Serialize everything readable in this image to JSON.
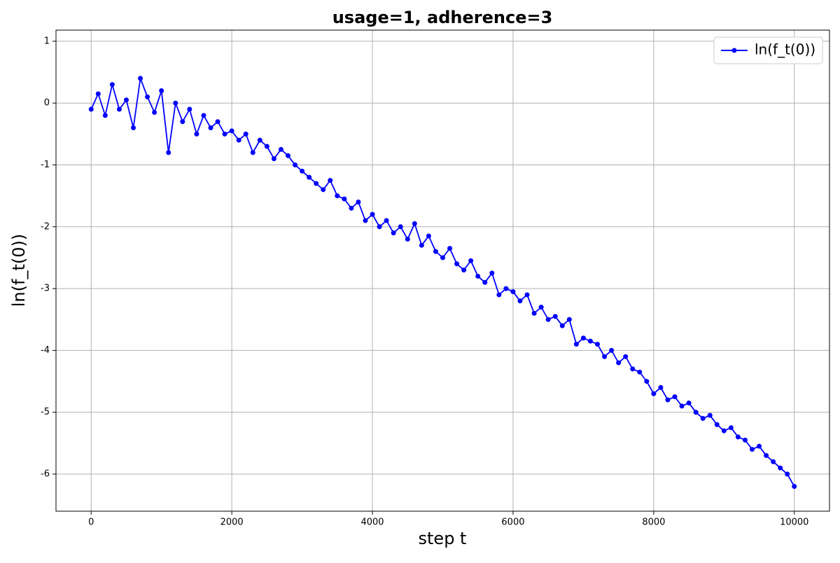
{
  "chart_data": {
    "type": "line",
    "title": "usage=1, adherence=3",
    "x_label": "step t",
    "y_label": "ln(f_t(0))",
    "x": [
      0,
      100,
      200,
      300,
      400,
      500,
      600,
      700,
      800,
      900,
      1000,
      1100,
      1200,
      1300,
      1400,
      1500,
      1600,
      1700,
      1800,
      1900,
      2000,
      2100,
      2200,
      2300,
      2400,
      2500,
      2600,
      2700,
      2800,
      2900,
      3000,
      3100,
      3200,
      3300,
      3400,
      3500,
      3600,
      3700,
      3800,
      3900,
      4000,
      4100,
      4200,
      4300,
      4400,
      4500,
      4600,
      4700,
      4800,
      4900,
      5000,
      5100,
      5200,
      5300,
      5400,
      5500,
      5600,
      5700,
      5800,
      5900,
      6000,
      6100,
      6200,
      6300,
      6400,
      6500,
      6600,
      6700,
      6800,
      6900,
      7000,
      7100,
      7200,
      7300,
      7400,
      7500,
      7600,
      7700,
      7800,
      7900,
      8000,
      8100,
      8200,
      8300,
      8400,
      8500,
      8600,
      8700,
      8800,
      8900,
      9000,
      9100,
      9200,
      9300,
      9400,
      9500,
      9600,
      9700,
      9800,
      9900,
      10000
    ],
    "series": [
      {
        "name": "ln(f_t(0))",
        "color": "#0000ff",
        "values": [
          -0.1,
          0.15,
          -0.2,
          0.3,
          -0.1,
          0.05,
          -0.4,
          0.4,
          0.1,
          -0.15,
          0.2,
          -0.8,
          0.0,
          -0.3,
          -0.1,
          -0.5,
          -0.2,
          -0.4,
          -0.3,
          -0.5,
          -0.45,
          -0.6,
          -0.5,
          -0.8,
          -0.6,
          -0.7,
          -0.9,
          -0.75,
          -0.85,
          -1.0,
          -1.1,
          -1.2,
          -1.3,
          -1.4,
          -1.25,
          -1.5,
          -1.55,
          -1.7,
          -1.6,
          -1.9,
          -1.8,
          -2.0,
          -1.9,
          -2.1,
          -2.0,
          -2.2,
          -1.95,
          -2.3,
          -2.15,
          -2.4,
          -2.5,
          -2.35,
          -2.6,
          -2.7,
          -2.55,
          -2.8,
          -2.9,
          -2.75,
          -3.1,
          -3.0,
          -3.05,
          -3.2,
          -3.1,
          -3.4,
          -3.3,
          -3.5,
          -3.45,
          -3.6,
          -3.5,
          -3.9,
          -3.8,
          -3.85,
          -3.9,
          -4.1,
          -4.0,
          -4.2,
          -4.1,
          -4.3,
          -4.35,
          -4.5,
          -4.7,
          -4.6,
          -4.8,
          -4.75,
          -4.9,
          -4.85,
          -5.0,
          -5.1,
          -5.05,
          -5.2,
          -5.3,
          -5.25,
          -5.4,
          -5.45,
          -5.6,
          -5.55,
          -5.7,
          -5.8,
          -5.9,
          -6.0,
          -6.2
        ]
      }
    ],
    "xlim": [
      -500,
      10500
    ],
    "ylim": [
      -6.6,
      1.18
    ],
    "xticks": [
      0,
      2000,
      4000,
      6000,
      8000,
      10000
    ],
    "yticks": [
      -6,
      -5,
      -4,
      -3,
      -2,
      -1,
      0,
      1
    ],
    "grid": true,
    "legend": "upper right"
  }
}
